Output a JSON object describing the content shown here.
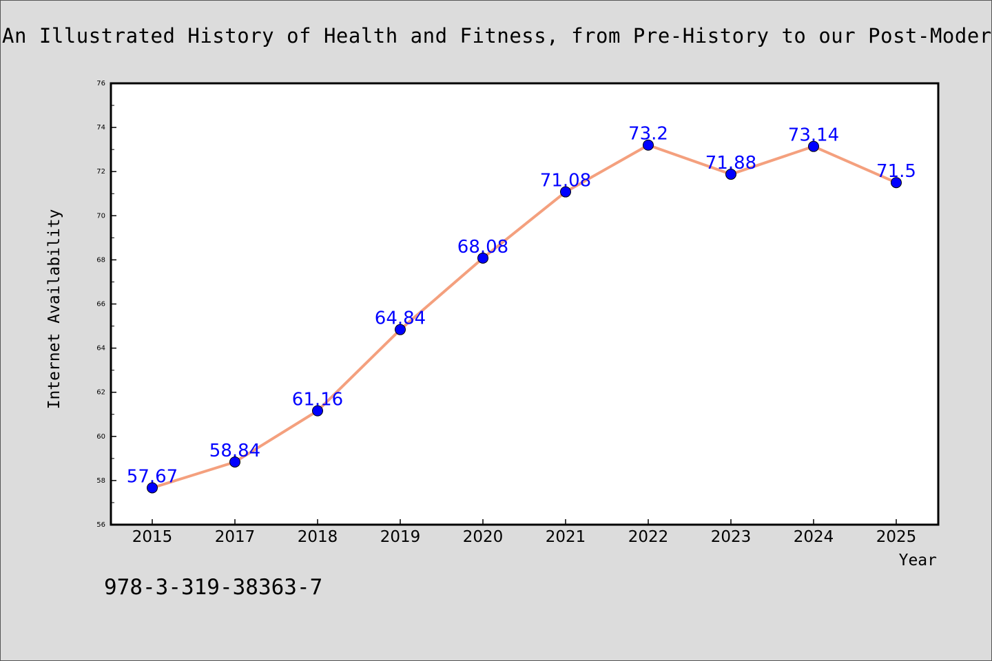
{
  "chart_data": {
    "type": "line",
    "title": "An Illustrated History of Health and Fitness, from Pre-History to our Post-Modern World",
    "xlabel": "Year",
    "ylabel": "Internet Availability",
    "categories": [
      "2015",
      "2017",
      "2018",
      "2019",
      "2020",
      "2021",
      "2022",
      "2023",
      "2024",
      "2025"
    ],
    "series": [
      {
        "values": [
          57.67,
          58.84,
          61.16,
          64.84,
          68.08,
          71.08,
          73.2,
          71.88,
          73.14,
          71.5
        ],
        "labels": [
          "57.67",
          "58.84",
          "61.16",
          "64.84",
          "68.08",
          "71.08",
          "73.2",
          "71.88",
          "73.14",
          "71.5"
        ]
      }
    ],
    "ylim": [
      56,
      76
    ],
    "yticks": [
      "56",
      "58",
      "60",
      "62",
      "64",
      "66",
      "68",
      "70",
      "72",
      "74",
      "76"
    ],
    "grid": false,
    "colors": {
      "line": "#f4a07e",
      "marker": "#0000ff",
      "label": "#0000ff",
      "background": "#dcdcdc",
      "plot_bg": "#ffffff"
    }
  },
  "footer": {
    "isbn": "978-3-319-38363-7"
  }
}
